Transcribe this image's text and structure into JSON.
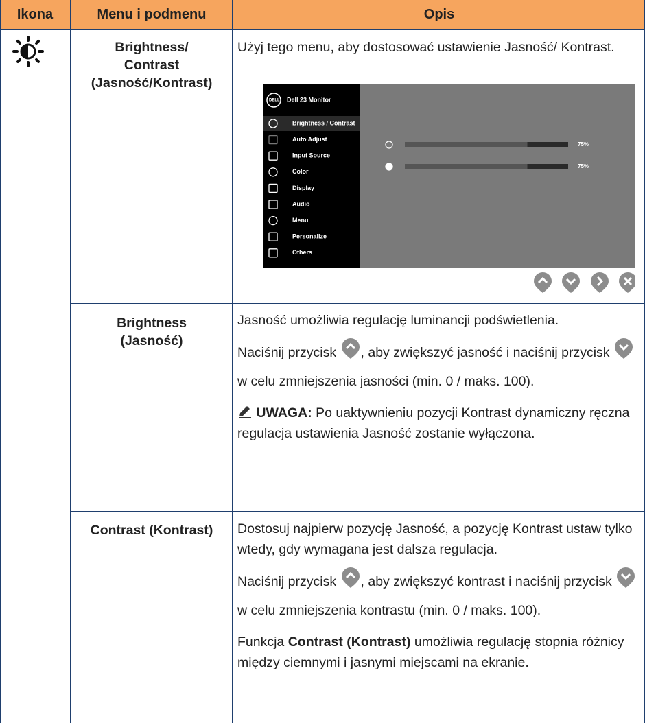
{
  "header": {
    "icon": "Ikona",
    "menu": "Menu i podmenu",
    "description": "Opis"
  },
  "rows": [
    {
      "menu": "Brightness/\nContrast\n(Jasność/Kontrast)",
      "description": "Użyj tego menu, aby dostosować ustawienie Jasność/ Kontrast.",
      "osd": {
        "title": "Dell 23 Monitor",
        "items": [
          "Brightness / Contrast",
          "Auto Adjust",
          "Input Source",
          "Color",
          "Display",
          "Audio",
          "Menu",
          "Personalize",
          "Others"
        ],
        "sliders": [
          {
            "value": 75,
            "label": "75%"
          },
          {
            "value": 75,
            "label": "75%"
          }
        ]
      }
    },
    {
      "menu": "Brightness\n(Jasność)",
      "p1": "Jasność umożliwia regulację luminancji podświetlenia.",
      "p2a": "Naciśnij przycisk ",
      "p2b": ", aby zwiększyć jasność i naciśnij przycisk ",
      "p2c": " w celu zmniejszenia jasności (min. 0 / maks. 100).",
      "note_label": "UWAGA:",
      "note": " Po uaktywnieniu pozycji Kontrast dynamiczny ręczna regulacja ustawienia Jasność zostanie wyłączona."
    },
    {
      "menu": "Contrast (Kontrast)",
      "p1": "Dostosuj najpierw pozycję Jasność, a pozycję Kontrast ustaw tylko wtedy, gdy wymagana jest dalsza regulacja.",
      "p2a": "Naciśnij przycisk ",
      "p2b": ", aby zwiększyć kontrast i naciśnij przycisk ",
      "p2c": " w celu zmniejszenia kontrastu (min. 0 / maks. 100).",
      "p3a": "Funkcja ",
      "p3b": "Contrast (Kontrast)",
      "p3c": " umożliwia regulację stopnia różnicy między ciemnymi i jasnymi miejscami na ekranie."
    }
  ]
}
